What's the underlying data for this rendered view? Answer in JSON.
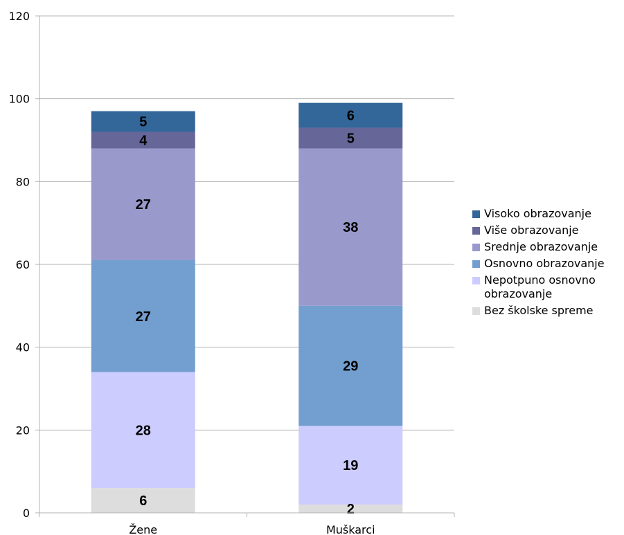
{
  "chart_data": {
    "type": "bar",
    "stacked": true,
    "categories": [
      "Žene",
      "Muškarci"
    ],
    "series": [
      {
        "name": "Bez školske spreme",
        "values": [
          6,
          2
        ],
        "color": "#dddddd"
      },
      {
        "name": "Nepotpuno osnovno obrazovanje",
        "values": [
          28,
          19
        ],
        "color": "#ccccff"
      },
      {
        "name": "Osnovno obrazovanje",
        "values": [
          27,
          29
        ],
        "color": "#729fcf"
      },
      {
        "name": "Srednje obrazovanje",
        "values": [
          27,
          38
        ],
        "color": "#9999cc"
      },
      {
        "name": "Više obrazovanje",
        "values": [
          4,
          5
        ],
        "color": "#666699"
      },
      {
        "name": "Visoko obrazovanje",
        "values": [
          5,
          6
        ],
        "color": "#336699"
      }
    ],
    "ylim": [
      0,
      120
    ],
    "yticks": [
      "0",
      "20",
      "40",
      "60",
      "80",
      "100",
      "120"
    ],
    "grid": true,
    "legend_position": "right",
    "legend_order": [
      "Visoko obrazovanje",
      "Više obrazovanje",
      "Srednje obrazovanje",
      "Osnovno obrazovanje",
      "Nepotpuno osnovno obrazovanje",
      "Bez školske spreme"
    ]
  }
}
